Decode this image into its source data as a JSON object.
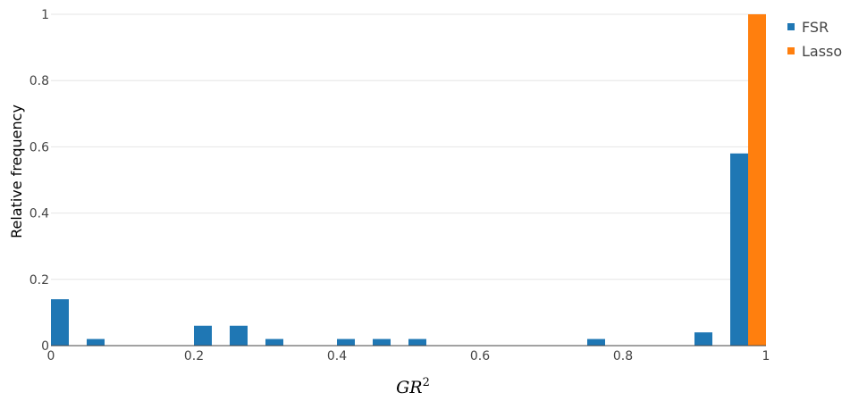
{
  "chart_data": {
    "type": "bar",
    "xlabel": "GR",
    "xlabel_sup": "2",
    "ylabel": "Relative frequency",
    "xlim": [
      0,
      1
    ],
    "ylim": [
      0,
      1
    ],
    "x_ticks": [
      {
        "value": 0,
        "label": "0"
      },
      {
        "value": 0.2,
        "label": "0.2"
      },
      {
        "value": 0.4,
        "label": "0.4"
      },
      {
        "value": 0.6,
        "label": "0.6"
      },
      {
        "value": 0.8,
        "label": "0.8"
      },
      {
        "value": 1,
        "label": "1"
      }
    ],
    "y_ticks": [
      {
        "value": 0,
        "label": "0"
      },
      {
        "value": 0.2,
        "label": "0.2"
      },
      {
        "value": 0.4,
        "label": "0.4"
      },
      {
        "value": 0.6,
        "label": "0.6"
      },
      {
        "value": 0.8,
        "label": "0.8"
      },
      {
        "value": 1,
        "label": "1"
      }
    ],
    "grid": "horizontal",
    "legend_position": "top-right",
    "bin_width": 0.05,
    "series": [
      {
        "name": "FSR",
        "color": "#1f77b4",
        "bins": [
          {
            "x0": 0.0,
            "value": 0.14
          },
          {
            "x0": 0.05,
            "value": 0.02
          },
          {
            "x0": 0.2,
            "value": 0.06
          },
          {
            "x0": 0.25,
            "value": 0.06
          },
          {
            "x0": 0.3,
            "value": 0.02
          },
          {
            "x0": 0.4,
            "value": 0.02
          },
          {
            "x0": 0.45,
            "value": 0.02
          },
          {
            "x0": 0.5,
            "value": 0.02
          },
          {
            "x0": 0.75,
            "value": 0.02
          },
          {
            "x0": 0.9,
            "value": 0.04
          },
          {
            "x0": 0.95,
            "value": 0.58
          }
        ]
      },
      {
        "name": "Lasso",
        "color": "#ff7f0e",
        "bins": [
          {
            "x0": 0.95,
            "value": 1.0
          }
        ]
      }
    ]
  }
}
